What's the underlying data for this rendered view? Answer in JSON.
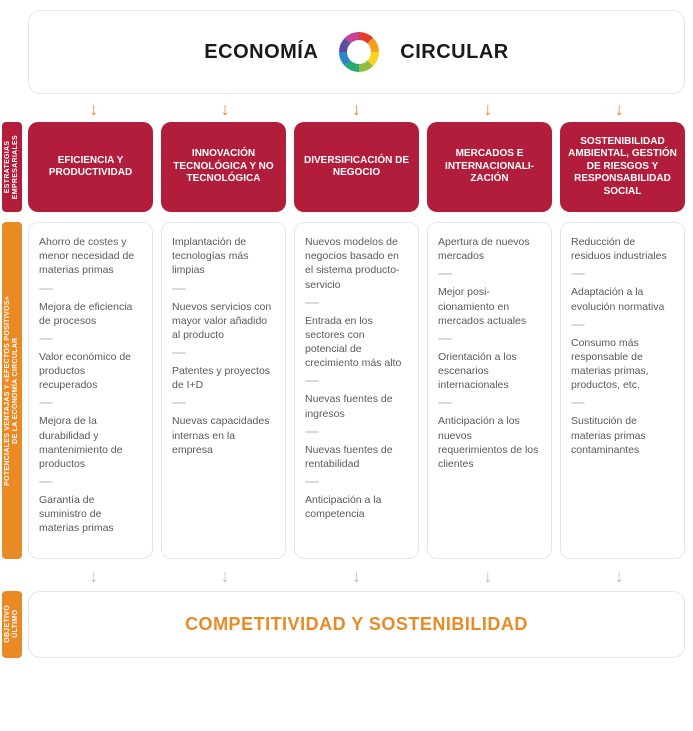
{
  "colors": {
    "header_red": "#b11d3b",
    "orange": "#e98a24",
    "arrow": "#e98a24",
    "footer_text": "#e98a24",
    "grey_arrow": "#bdbdbd",
    "ring": [
      "#e23e2c",
      "#f2a11f",
      "#f7d31e",
      "#8fbf3f",
      "#2aa876",
      "#2b87c7",
      "#5b4ea0",
      "#c74299"
    ]
  },
  "header": {
    "word_left": "ECONOMÍA",
    "word_right": "CIRCULAR"
  },
  "side_labels": {
    "strategies": "ESTRATEGIAS\nEMPRESARIALES",
    "advantages": "POTENCIALES VENTAJAS Y «EFECTOS POSITIVOS»\nDE LA ECONOMÍA CIRCULAR",
    "objective": "OBJETIVO\nÚLTIMO"
  },
  "columns": [
    {
      "title": "EFICIENCIA Y PRODUCTIVIDAD",
      "items": [
        "Ahorro de costes y menor necesidad de materias primas",
        "Mejora de eficiencia de procesos",
        "Valor económico de productos recuperados",
        "Mejora de la durabilidad y mantenimiento de productos",
        "Garantía de suministro de materias primas"
      ]
    },
    {
      "title": "INNOVACIÓN TECNOLÓGICA Y NO TECNOLÓGICA",
      "items": [
        "Implantación de tecnologías más limpias",
        "Nuevos servicios con mayor valor añadido al producto",
        "Patentes y proyectos de I+D",
        "Nuevas capacidades internas en la empresa"
      ]
    },
    {
      "title": "DIVERSIFICACIÓN DE NEGOCIO",
      "items": [
        "Nuevos modelos de negocios basado en el sistema producto-servicio",
        "Entrada en los sectores con potencial de crecimiento más alto",
        "Nuevas fuentes de ingresos",
        "Nuevas fuentes de rentabilidad",
        "Anticipación a la competencia"
      ]
    },
    {
      "title": "MERCADOS E INTERNACIONALI-ZACIÓN",
      "items": [
        "Apertura de nuevos mercados",
        "Mejor posi-cionamiento en mercados actuales",
        "Orientación a los escenarios internacionales",
        "Anticipación a los nuevos requerimientos de los clientes"
      ]
    },
    {
      "title": "SOSTENIBILIDAD AMBIENTAL, GESTIÓN DE RIESGOS Y RESPONSABILIDAD SOCIAL",
      "items": [
        "Reducción de residuos industriales",
        "Adaptación a la evolución normativa",
        "Consumo más responsable de materias primas, productos, etc.",
        "Sustitución de materias primas contaminantes"
      ]
    }
  ],
  "footer": "COMPETITIVIDAD Y SOSTENIBILIDAD"
}
